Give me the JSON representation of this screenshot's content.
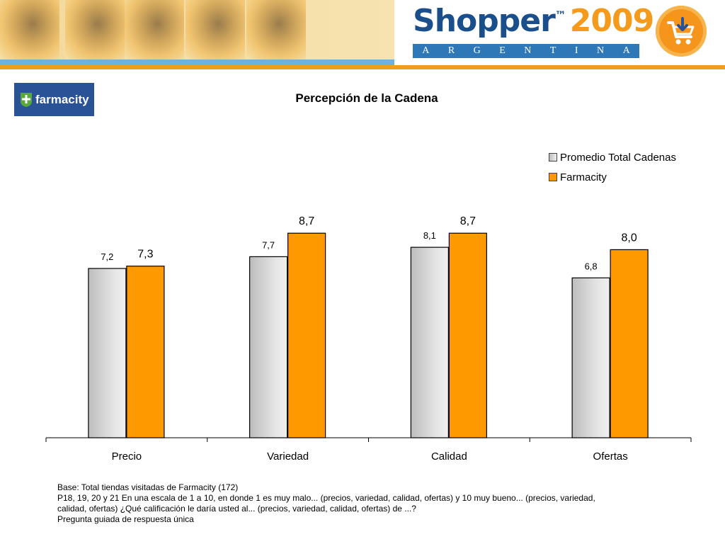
{
  "header": {
    "brand": "Shopper",
    "trademark": "™",
    "year": "2009",
    "country_letters": [
      "A",
      "R",
      "G",
      "E",
      "N",
      "T",
      "I",
      "N",
      "A"
    ]
  },
  "chain_logo": {
    "text": "farmacity"
  },
  "chart_title": "Percepción de la Cadena",
  "chart_data": {
    "type": "bar",
    "title": "Percepción de la Cadena",
    "categories": [
      "Precio",
      "Variedad",
      "Calidad",
      "Ofertas"
    ],
    "series": [
      {
        "name": "Promedio Total Cadenas",
        "values": [
          7.2,
          7.7,
          8.1,
          6.8
        ],
        "labels": [
          "7,2",
          "7,7",
          "8,1",
          "6,8"
        ],
        "color": "#d6d6d6"
      },
      {
        "name": "Farmacity",
        "values": [
          7.3,
          8.7,
          8.7,
          8.0
        ],
        "labels": [
          "7,3",
          "8,7",
          "8,7",
          "8,0"
        ],
        "color": "#ff9900"
      }
    ],
    "ylim": [
      0,
      10
    ],
    "legend_position": "top-right",
    "grid": false
  },
  "footnotes": [
    "Base: Total tiendas visitadas de Farmacity  (172)",
    "P18, 19, 20 y 21 En una escala de 1 a 10, en donde 1 es muy malo... (precios, variedad, calidad, ofertas)  y 10 muy bueno...  (precios, variedad, calidad, ofertas) ¿Qué calificación le daría usted al... (precios, variedad, calidad, ofertas) de ...?",
    "Pregunta guiada de respuesta única"
  ]
}
